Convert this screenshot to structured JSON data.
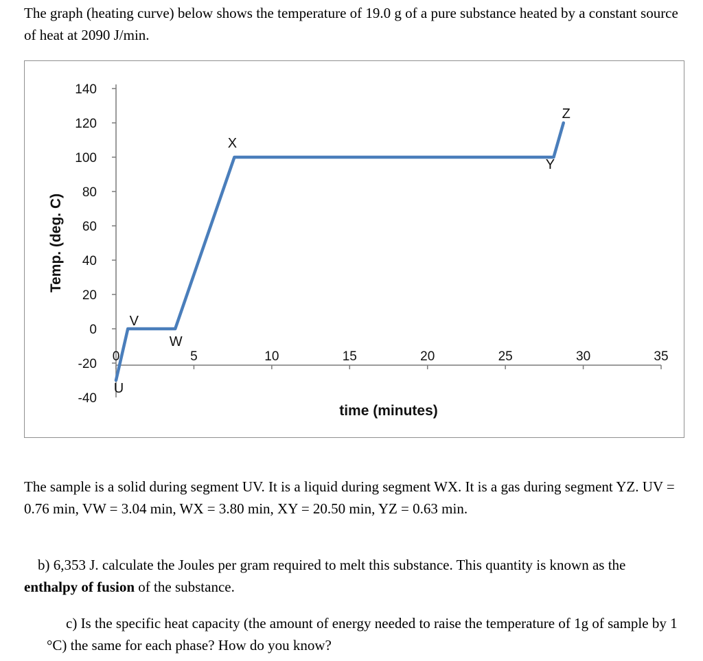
{
  "page": {
    "intro": "The graph (heating curve) below shows the temperature of 19.0 g of a pure substance heated by a constant source of heat at 2090 J/min.",
    "sample_text": "The sample is a solid during segment UV. It is a liquid during segment WX. It is a gas during segment YZ. UV = 0.76 min, VW = 3.04 min, WX = 3.80 min, XY = 20.50 min, YZ = 0.63 min.",
    "question_b": {
      "prefix": "b) 6,353 J. calculate the Joules per gram required to melt this substance. This quantity is known as the ",
      "bold": "enthalpy of fusion",
      "suffix": " of the substance."
    },
    "question_c": "c) Is the specific heat capacity (the amount of energy needed to raise the temperature of 1g of sample by 1 °C) the same for each phase? How do you know?"
  },
  "chart_data": {
    "type": "line",
    "title": "",
    "xlabel": "time (minutes)",
    "ylabel": "Temp. (deg. C)",
    "xlim": [
      0,
      35
    ],
    "ylim": [
      -40,
      140
    ],
    "x_ticks": [
      0,
      5,
      10,
      15,
      20,
      25,
      30,
      35
    ],
    "y_ticks": [
      -40,
      -20,
      0,
      20,
      40,
      60,
      80,
      100,
      120,
      140
    ],
    "grid": false,
    "legend": false,
    "line_color": "#4a7ebb",
    "points": [
      {
        "label": "U",
        "x": 0,
        "y": -30
      },
      {
        "label": "V",
        "x": 0.76,
        "y": 0
      },
      {
        "label": "W",
        "x": 3.8,
        "y": 0
      },
      {
        "label": "X",
        "x": 7.6,
        "y": 100
      },
      {
        "label": "Y",
        "x": 28.1,
        "y": 100
      },
      {
        "label": "Z",
        "x": 28.73,
        "y": 120
      }
    ],
    "segment_durations": {
      "UV": "0.76 min",
      "VW": "3.04 min",
      "WX": "3.80 min",
      "XY": "20.50 min",
      "YZ": "0.63 min"
    }
  }
}
